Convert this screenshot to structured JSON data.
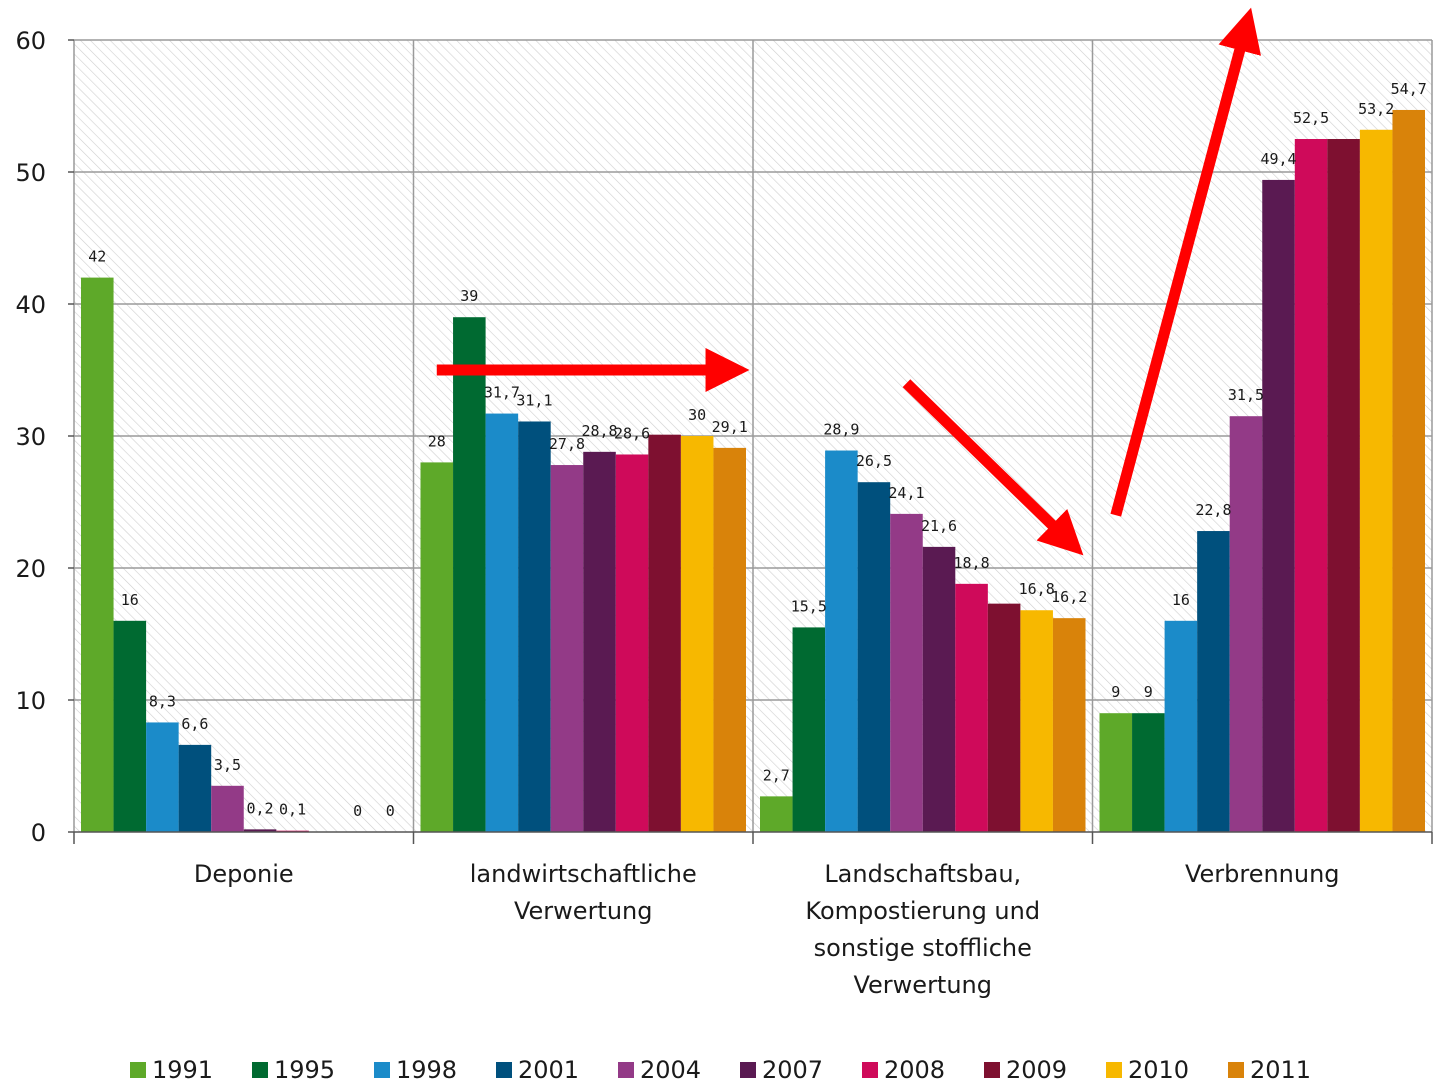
{
  "chart_data": {
    "type": "bar",
    "title": "",
    "xlabel": "",
    "ylabel": "",
    "ylim": [
      0,
      60
    ],
    "yticks": [
      "0",
      "10",
      "20",
      "30",
      "40",
      "50",
      "60"
    ],
    "grid": true,
    "legend_position": "bottom",
    "categories": [
      "Deponie",
      "landwirtschaftliche Verwertung",
      "Landschaftsbau, Kompostierung und sonstige stoffliche Verwertung",
      "Verbrennung"
    ],
    "category_lines": [
      [
        "Deponie"
      ],
      [
        "landwirtschaftliche",
        "Verwertung"
      ],
      [
        "Landschaftsbau,",
        "Kompostierung und",
        "sonstige stoffliche",
        "Verwertung"
      ],
      [
        "Verbrennung"
      ]
    ],
    "series": [
      {
        "name": "1991",
        "color": "#5ea929",
        "values": [
          42,
          28,
          2.7,
          9
        ],
        "labels": [
          "42",
          "28",
          "2,7",
          "9"
        ]
      },
      {
        "name": "1995",
        "color": "#006a31",
        "values": [
          16,
          39,
          15.5,
          9
        ],
        "labels": [
          "16",
          "39",
          "15,5",
          "9"
        ]
      },
      {
        "name": "1998",
        "color": "#1b8bc9",
        "values": [
          8.3,
          31.7,
          28.9,
          16
        ],
        "labels": [
          "8,3",
          "31,7",
          "28,9",
          "16"
        ]
      },
      {
        "name": "2001",
        "color": "#00507d",
        "values": [
          6.6,
          31.1,
          26.5,
          22.8
        ],
        "labels": [
          "6,6",
          "31,1",
          "26,5",
          "22,8"
        ]
      },
      {
        "name": "2004",
        "color": "#933a87",
        "values": [
          3.5,
          27.8,
          24.1,
          31.5
        ],
        "labels": [
          "3,5",
          "27,8",
          "24,1",
          "31,5"
        ]
      },
      {
        "name": "2007",
        "color": "#5a1a52",
        "values": [
          0.2,
          28.8,
          21.6,
          49.4
        ],
        "labels": [
          "0,2",
          "28,8",
          "21,6",
          "49,4"
        ]
      },
      {
        "name": "2008",
        "color": "#cf0a5a",
        "values": [
          0.1,
          28.6,
          18.8,
          52.5
        ],
        "labels": [
          "0,1",
          "28,6",
          "18,8",
          "52,5"
        ]
      },
      {
        "name": "2009",
        "color": "#7e1030",
        "values": [
          0,
          30.1,
          17.3,
          52.5
        ],
        "labels": [
          "",
          "",
          "",
          ""
        ]
      },
      {
        "name": "2010",
        "color": "#f7b800",
        "values": [
          0,
          30,
          16.8,
          53.2
        ],
        "labels": [
          "0",
          "30",
          "16,8",
          "53,2"
        ]
      },
      {
        "name": "2011",
        "color": "#d9830a",
        "values": [
          0,
          29.1,
          16.2,
          54.7
        ],
        "labels": [
          "0",
          "29,1",
          "16,2",
          "54,7"
        ]
      }
    ],
    "annotations": [
      {
        "type": "arrow",
        "color": "#ff0000",
        "meaning": "stable",
        "category": "landwirtschaftliche Verwertung",
        "from": [
          1991,
          35
        ],
        "to": [
          2011,
          35
        ]
      },
      {
        "type": "arrow",
        "color": "#ff0000",
        "meaning": "decrease",
        "category": "Landschaftsbau, Kompostierung und sonstige stoffliche Verwertung",
        "from": [
          2004,
          34
        ],
        "to": [
          2011,
          22
        ]
      },
      {
        "type": "arrow",
        "color": "#ff0000",
        "meaning": "increase",
        "category": "Verbrennung",
        "from": [
          1991,
          24
        ],
        "to": [
          2004,
          61
        ]
      }
    ]
  }
}
